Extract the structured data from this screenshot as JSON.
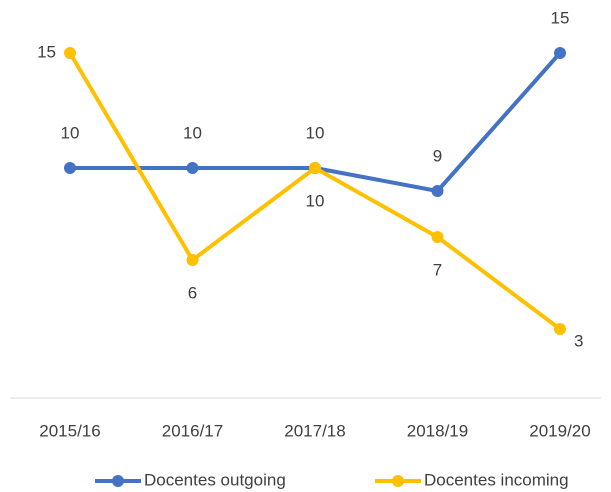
{
  "chart_data": {
    "type": "line",
    "categories": [
      "2015/16",
      "2016/17",
      "2017/18",
      "2018/19",
      "2019/20"
    ],
    "series": [
      {
        "name": "Docentes outgoing",
        "color": "#4472c4",
        "values": [
          10,
          10,
          10,
          9,
          15
        ]
      },
      {
        "name": "Docentes incoming",
        "color": "#ffc000",
        "values": [
          15,
          6,
          10,
          7,
          3
        ]
      }
    ],
    "ylim": [
      0,
      16
    ],
    "legend": "bottom",
    "data_labels": true
  }
}
